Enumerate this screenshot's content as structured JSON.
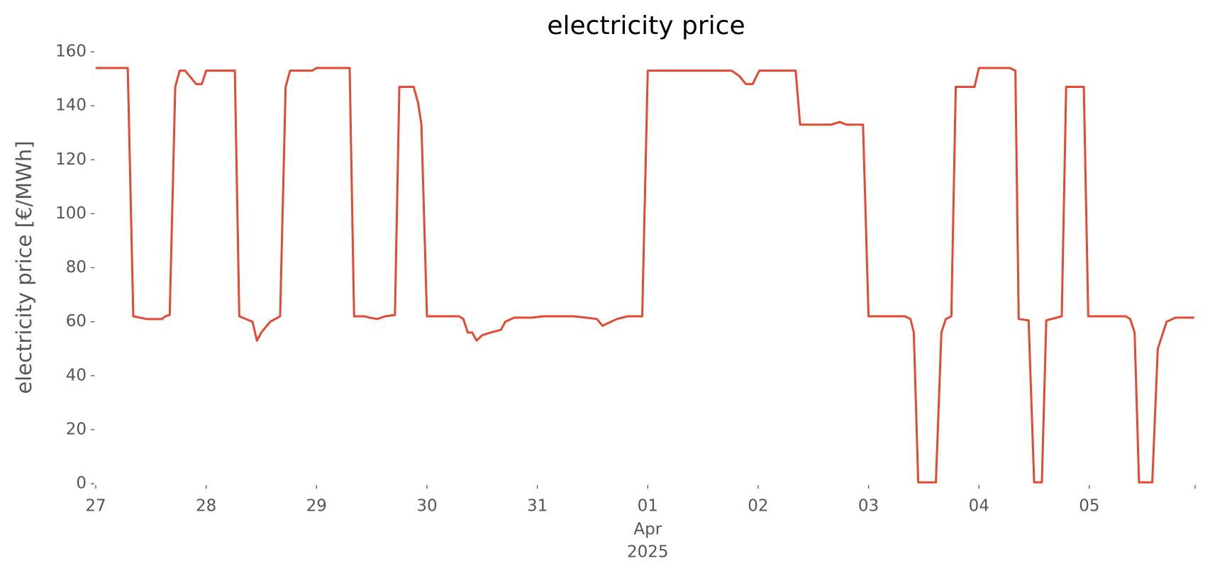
{
  "chart_data": {
    "type": "line",
    "title": "electricity price",
    "y_label": "electricity price [€/MWh]",
    "color": "#e24a33",
    "x": [
      0,
      0.29,
      0.34,
      0.46,
      0.6,
      0.63,
      0.67,
      0.72,
      0.76,
      0.81,
      0.87,
      0.91,
      0.96,
      1.0,
      1.26,
      1.3,
      1.42,
      1.46,
      1.5,
      1.58,
      1.67,
      1.72,
      1.76,
      1.96,
      2.0,
      2.3,
      2.34,
      2.44,
      2.48,
      2.55,
      2.62,
      2.71,
      2.75,
      2.88,
      2.92,
      2.95,
      3.0,
      3.29,
      3.33,
      3.37,
      3.41,
      3.45,
      3.5,
      3.58,
      3.67,
      3.71,
      3.79,
      3.95,
      4.05,
      4.33,
      4.44,
      4.54,
      4.59,
      4.72,
      4.82,
      4.95,
      5.0,
      5.76,
      5.83,
      5.89,
      5.95,
      6.01,
      6.34,
      6.38,
      6.66,
      6.74,
      6.8,
      6.95,
      7.0,
      7.33,
      7.38,
      7.41,
      7.45,
      7.61,
      7.66,
      7.7,
      7.75,
      7.79,
      7.96,
      8.0,
      8.28,
      8.33,
      8.36,
      8.45,
      8.5,
      8.57,
      8.61,
      8.75,
      8.79,
      8.95,
      8.99,
      9.33,
      9.37,
      9.41,
      9.45,
      9.57,
      9.62,
      9.66,
      9.7,
      9.78,
      9.95
    ],
    "values": [
      154,
      154,
      62,
      61,
      61,
      62,
      62.5,
      147,
      153,
      153,
      150,
      148,
      148,
      153,
      153,
      62,
      60,
      53,
      56,
      60,
      62,
      147,
      153,
      153,
      154,
      154,
      62,
      62,
      61.5,
      61,
      62,
      62.5,
      147,
      147,
      141,
      133,
      62,
      62,
      61,
      56,
      56,
      53,
      55,
      56,
      57,
      60,
      61.5,
      61.5,
      62,
      62,
      61.5,
      61,
      58.5,
      61,
      62,
      62,
      153,
      153,
      151,
      148,
      148,
      153,
      153,
      133,
      133,
      134,
      133,
      133,
      62,
      62,
      61,
      56,
      0.5,
      0.5,
      56,
      61,
      62,
      147,
      147,
      154,
      154,
      153,
      61,
      60.5,
      0.5,
      0.5,
      60.5,
      62,
      147,
      147,
      62,
      62,
      61,
      56,
      0.5,
      0.5,
      50,
      55,
      60,
      61.5,
      61.5
    ],
    "xlim": [
      0,
      9.958
    ],
    "xticks": [
      {
        "value": 0,
        "label": "27"
      },
      {
        "value": 1,
        "label": "28"
      },
      {
        "value": 2,
        "label": "29"
      },
      {
        "value": 3,
        "label": "30"
      },
      {
        "value": 4,
        "label": "31"
      },
      {
        "value": 5,
        "label": "01"
      },
      {
        "value": 6,
        "label": "02"
      },
      {
        "value": 7,
        "label": "03"
      },
      {
        "value": 8,
        "label": "04"
      },
      {
        "value": 9,
        "label": "05"
      }
    ],
    "x_tick_sublabels": [
      "Apr",
      "2025"
    ],
    "ylim": [
      0,
      160
    ],
    "yticks": [
      0,
      20,
      40,
      60,
      80,
      100,
      120,
      140,
      160
    ],
    "grid": false
  }
}
